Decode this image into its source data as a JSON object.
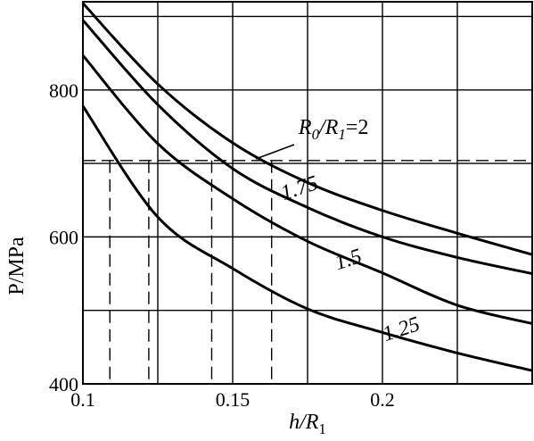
{
  "chart_data": {
    "type": "line",
    "xlabel": {
      "main": "h/R",
      "sub": "1"
    },
    "ylabel": "P/MPa",
    "xlim": [
      0.1,
      0.25
    ],
    "ylim": [
      400,
      920
    ],
    "x_ticks": [
      {
        "value": 0.1,
        "label": "0.1"
      },
      {
        "value": 0.15,
        "label": "0.15"
      },
      {
        "value": 0.2,
        "label": "0.2"
      }
    ],
    "y_ticks": [
      {
        "value": 400,
        "label": "400"
      },
      {
        "value": 600,
        "label": "600"
      },
      {
        "value": 800,
        "label": "800"
      }
    ],
    "x_grid": [
      0.125,
      0.15,
      0.175,
      0.2,
      0.225
    ],
    "y_grid": [
      500,
      600,
      700,
      800,
      900
    ],
    "grid": true,
    "series": [
      {
        "name": "2",
        "x": [
          0.1,
          0.125,
          0.15,
          0.175,
          0.2,
          0.225,
          0.25
        ],
        "y": [
          918,
          808,
          728,
          674,
          636,
          605,
          576
        ]
      },
      {
        "name": "1.75",
        "x": [
          0.1,
          0.125,
          0.15,
          0.175,
          0.2,
          0.225,
          0.25
        ],
        "y": [
          895,
          780,
          693,
          640,
          600,
          572,
          550
        ]
      },
      {
        "name": "1.5",
        "x": [
          0.1,
          0.125,
          0.15,
          0.175,
          0.2,
          0.225,
          0.25
        ],
        "y": [
          847,
          727,
          652,
          594,
          551,
          507,
          482
        ]
      },
      {
        "name": "1.25",
        "x": [
          0.1,
          0.125,
          0.15,
          0.175,
          0.2,
          0.225,
          0.25
        ],
        "y": [
          778,
          627,
          557,
          502,
          470,
          442,
          418
        ]
      }
    ],
    "curve_labels": [
      {
        "prefix_R": "R",
        "prefix_sub0": "0",
        "prefix_slash": "/R",
        "prefix_sub1": "1",
        "text": "=2",
        "x": 0.172,
        "y": 740
      },
      {
        "text": "1.75",
        "x": 0.167,
        "y": 650
      },
      {
        "text": "1.5",
        "x": 0.185,
        "y": 555
      },
      {
        "text": "1.25",
        "x": 0.201,
        "y": 458
      }
    ],
    "reference_line": {
      "y": 704,
      "x_from": 0.1,
      "x_to": 0.25
    },
    "drop_lines": [
      0.109,
      0.122,
      0.143,
      0.163
    ]
  }
}
